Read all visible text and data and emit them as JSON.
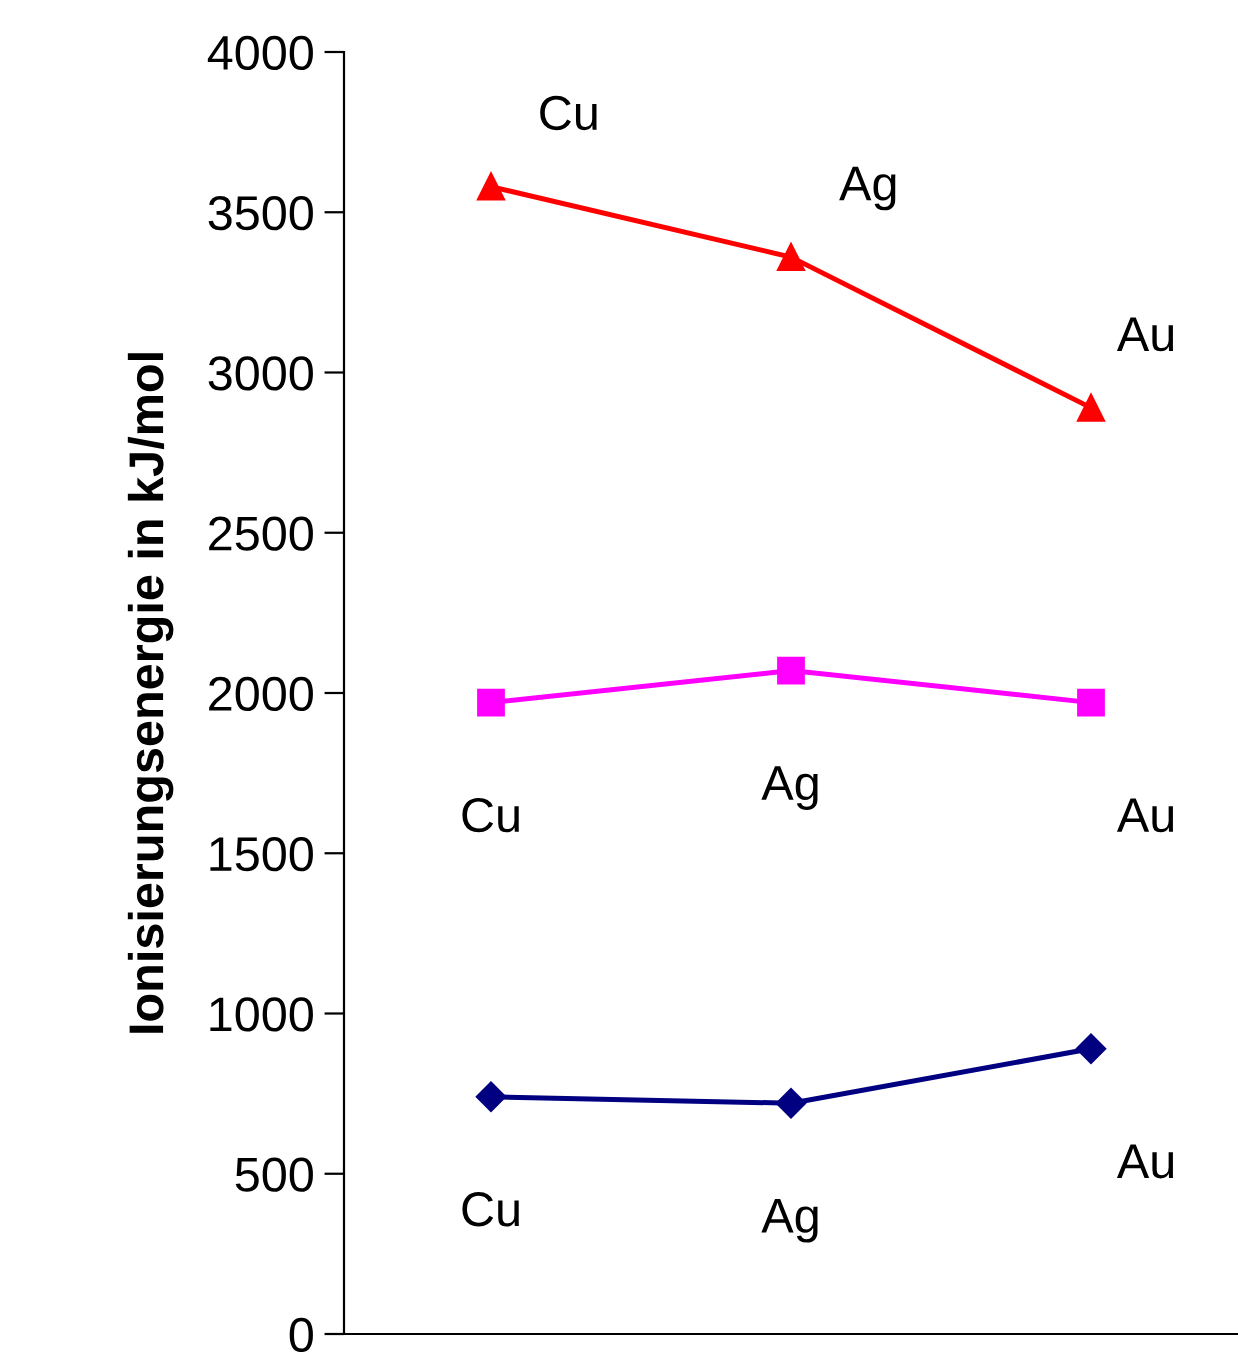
{
  "chart_data": {
    "type": "line",
    "ylabel": "Ionisierungsenergie in kJ/mol",
    "categories": [
      null,
      null,
      null
    ],
    "ylim": [
      0,
      4000
    ],
    "yticks": [
      0,
      500,
      1000,
      1500,
      2000,
      2500,
      3000,
      3500,
      4000
    ],
    "grid": false,
    "legend": false,
    "line_style": "solid",
    "series": [
      {
        "color": "#ff0000",
        "marker": "triangle",
        "values": [
          3580,
          3360,
          2890
        ],
        "value_labels": [
          "Cu",
          "Ag",
          "Au"
        ]
      },
      {
        "color": "#ff00ff",
        "marker": "square",
        "values": [
          1970,
          2070,
          1970
        ],
        "value_labels": [
          "Cu",
          "Ag",
          "Au"
        ]
      },
      {
        "color": "#000080",
        "marker": "diamond",
        "values": [
          740,
          720,
          890
        ],
        "value_labels": [
          "Cu",
          "Ag",
          "Au"
        ]
      }
    ]
  }
}
